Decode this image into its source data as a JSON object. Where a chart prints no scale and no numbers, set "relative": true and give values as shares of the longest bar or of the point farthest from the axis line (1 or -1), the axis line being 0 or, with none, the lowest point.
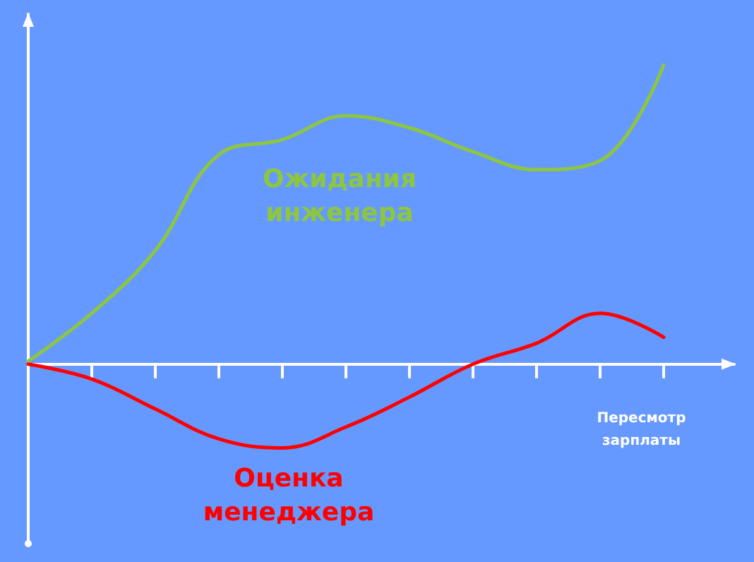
{
  "chart_data": {
    "type": "line",
    "relative": true,
    "xlabel": "Пересмотр зарплаты",
    "categories": [
      null,
      null,
      null,
      null,
      null,
      null,
      null,
      null,
      null,
      null,
      null
    ],
    "series": [
      {
        "name": "Ожидания инженера",
        "color": "#8dc63f",
        "values": [
          0.01,
          0.17,
          0.38,
          0.7,
          0.75,
          0.83,
          0.79,
          0.71,
          0.65,
          0.68,
          1.0
        ]
      },
      {
        "name": "Оценка менеджера",
        "color": "#ff0000",
        "values": [
          0,
          -0.05,
          -0.15,
          -0.25,
          -0.28,
          -0.21,
          -0.11,
          0,
          0.07,
          0.17,
          0.09
        ]
      }
    ],
    "marker": "none",
    "line_style": "solid",
    "grid": false,
    "legend": false
  }
}
